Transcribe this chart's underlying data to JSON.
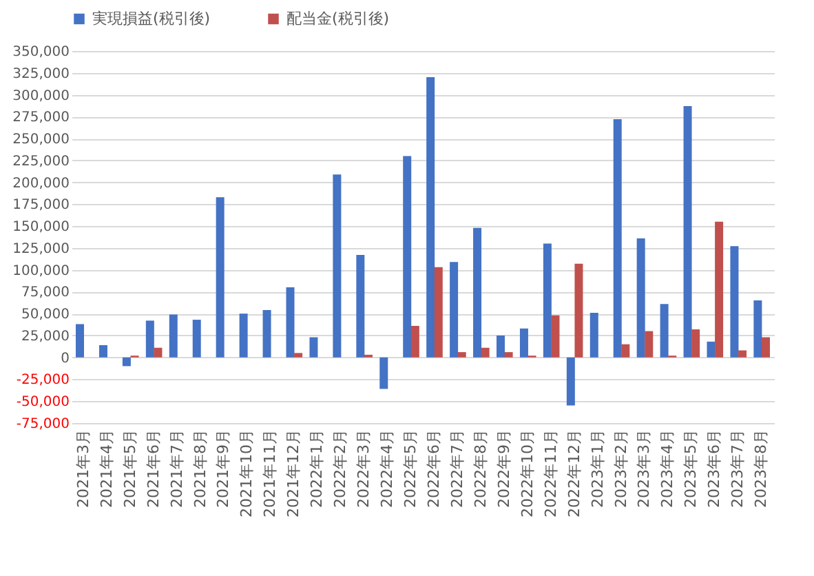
{
  "chart_data": {
    "type": "bar",
    "categories": [
      "2021年3月",
      "2021年4月",
      "2021年5月",
      "2021年6月",
      "2021年7月",
      "2021年8月",
      "2021年9月",
      "2021年10月",
      "2021年11月",
      "2021年12月",
      "2022年1月",
      "2022年2月",
      "2022年3月",
      "2022年4月",
      "2022年5月",
      "2022年6月",
      "2022年7月",
      "2022年8月",
      "2022年9月",
      "2022年10月",
      "2022年11月",
      "2022年12月",
      "2023年1月",
      "2023年2月",
      "2023年3月",
      "2023年4月",
      "2023年5月",
      "2023年6月",
      "2023年7月",
      "2023年8月"
    ],
    "series": [
      {
        "name": "実現損益(税引後)",
        "color": "#4472c4",
        "values": [
          38000,
          14000,
          -10000,
          42000,
          49000,
          43000,
          183000,
          50000,
          54000,
          80000,
          23000,
          209000,
          117000,
          -36000,
          230000,
          320000,
          109000,
          148000,
          25000,
          33000,
          130000,
          -55000,
          51000,
          272000,
          136000,
          61000,
          287000,
          18000,
          127000,
          65000
        ]
      },
      {
        "name": "配当金(税引後)",
        "color": "#c0504d",
        "values": [
          0,
          0,
          2000,
          11000,
          0,
          0,
          0,
          0,
          0,
          5000,
          0,
          0,
          3000,
          0,
          36000,
          103000,
          6000,
          11000,
          6000,
          2000,
          48000,
          107000,
          0,
          15000,
          30000,
          2000,
          32000,
          155000,
          8000,
          23000
        ]
      }
    ],
    "ylim": [
      -75000,
      350000
    ],
    "yticks": [
      {
        "value": -75000,
        "label": "-75,000"
      },
      {
        "value": -50000,
        "label": "-50,000"
      },
      {
        "value": -25000,
        "label": "-25,000"
      },
      0,
      {
        "value": 25000,
        "label": "25,000"
      },
      {
        "value": 50000,
        "label": "50,000"
      },
      {
        "value": 75000,
        "label": "75,000"
      },
      {
        "value": 100000,
        "label": "100,000"
      },
      {
        "value": 125000,
        "label": "125,000"
      },
      {
        "value": 150000,
        "label": "150,000"
      },
      {
        "value": 175000,
        "label": "175,000"
      },
      {
        "value": 200000,
        "label": "200,000"
      },
      {
        "value": 225000,
        "label": "225,000"
      },
      {
        "value": 250000,
        "label": "250,000"
      },
      {
        "value": 275000,
        "label": "275,000"
      },
      {
        "value": 300000,
        "label": "300,000"
      },
      {
        "value": 325000,
        "label": "325,000"
      },
      {
        "value": 350000,
        "label": "350,000"
      }
    ],
    "grid": "y",
    "legend": "top"
  }
}
